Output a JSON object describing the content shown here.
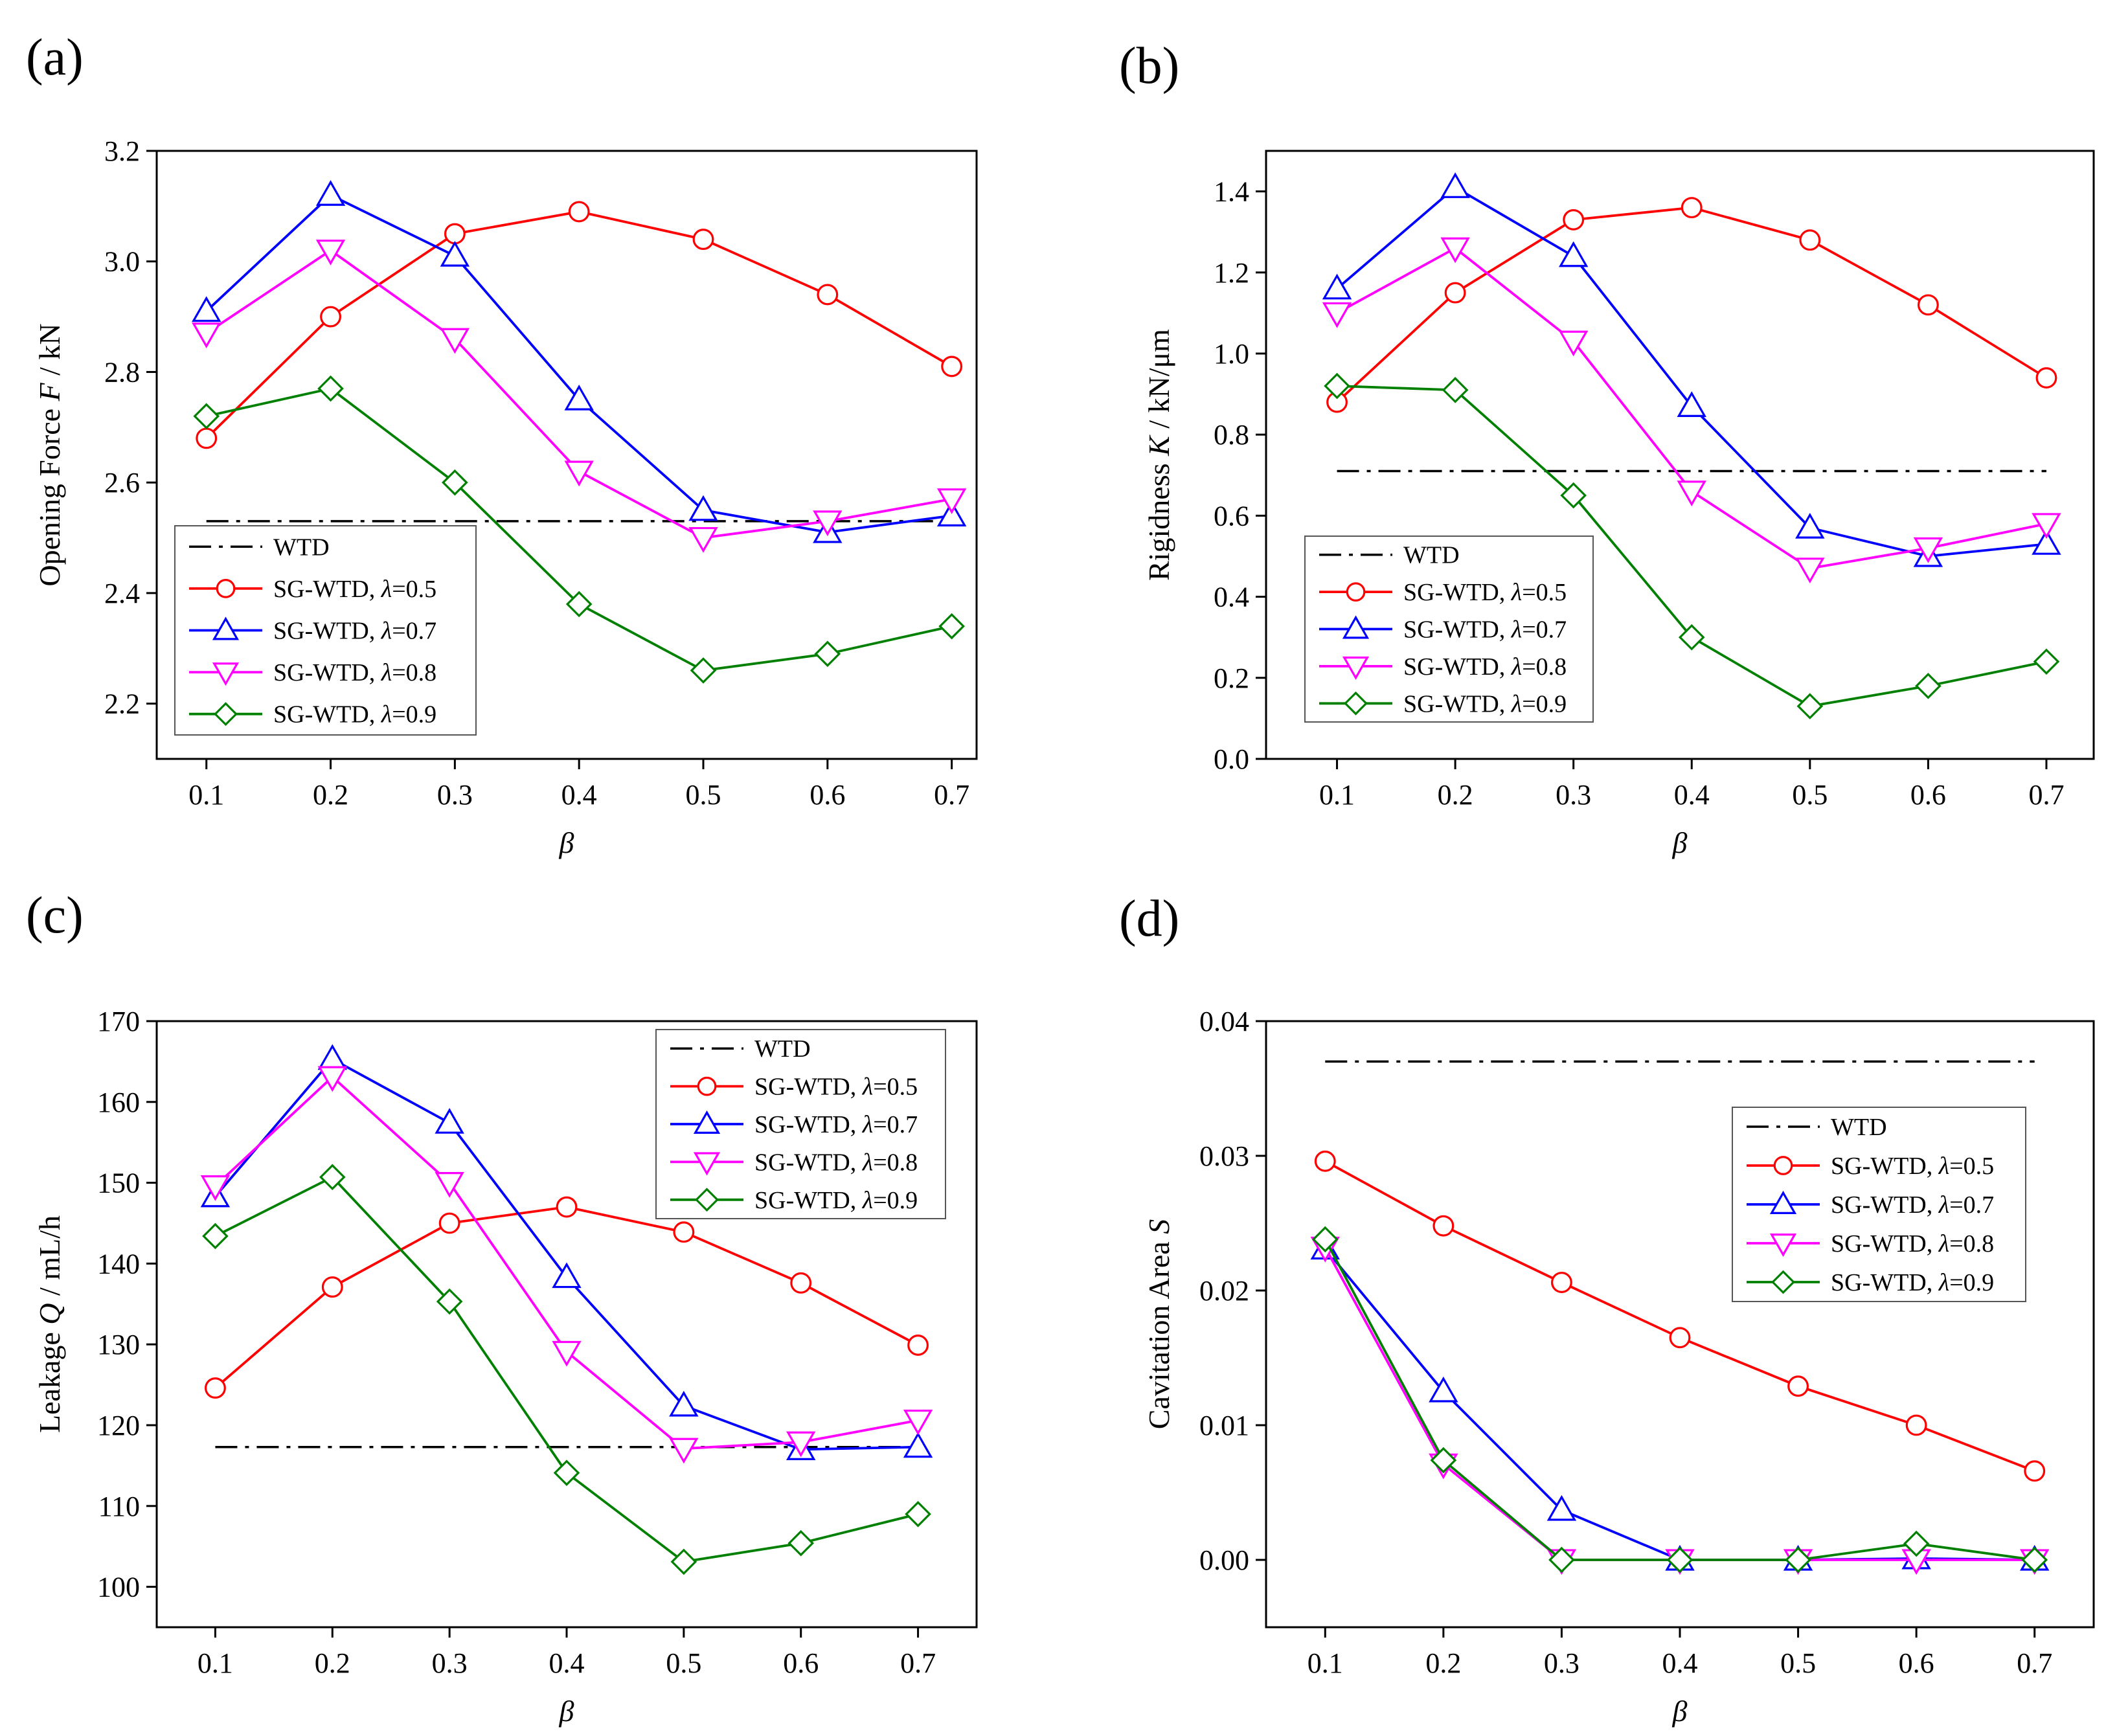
{
  "colors": {
    "wtd": "#000000",
    "lambda_0_5": "#ff0000",
    "lambda_0_7": "#0000ff",
    "lambda_0_8": "#ff00ff",
    "lambda_0_9": "#008000"
  },
  "chart_data": [
    {
      "type": "line",
      "panel_label": "(a)",
      "xlabel": "β",
      "ylabel": "Opening Force F / kN",
      "x": [
        0.1,
        0.2,
        0.3,
        0.4,
        0.5,
        0.6,
        0.7
      ],
      "xticks": [
        "0.1",
        "0.2",
        "0.3",
        "0.4",
        "0.5",
        "0.6",
        "0.7"
      ],
      "xlim": [
        0.06,
        0.72
      ],
      "ylim": [
        2.1,
        3.2
      ],
      "yticks": [
        "2.2",
        "2.4",
        "2.6",
        "2.8",
        "3.0",
        "3.2"
      ],
      "legend_position": "bottom-left",
      "reference": {
        "name": "WTD",
        "value": 2.53
      },
      "series": [
        {
          "name": "SG-WTD, λ=0.5",
          "marker": "circle",
          "values": [
            2.68,
            2.9,
            3.05,
            3.09,
            3.04,
            2.94,
            2.81
          ]
        },
        {
          "name": "SG-WTD, λ=0.7",
          "marker": "triangle-up",
          "values": [
            2.91,
            3.12,
            3.01,
            2.75,
            2.55,
            2.51,
            2.54
          ]
        },
        {
          "name": "SG-WTD, λ=0.8",
          "marker": "triangle-down",
          "values": [
            2.87,
            3.02,
            2.86,
            2.62,
            2.5,
            2.53,
            2.57
          ]
        },
        {
          "name": "SG-WTD, λ=0.9",
          "marker": "diamond",
          "values": [
            2.72,
            2.77,
            2.6,
            2.38,
            2.26,
            2.29,
            2.34
          ]
        }
      ]
    },
    {
      "type": "line",
      "panel_label": "(b)",
      "xlabel": "β",
      "ylabel": "Rigidness K / kN/μm",
      "x": [
        0.1,
        0.2,
        0.3,
        0.4,
        0.5,
        0.6,
        0.7
      ],
      "xticks": [
        "0.1",
        "0.2",
        "0.3",
        "0.4",
        "0.5",
        "0.6",
        "0.7"
      ],
      "xlim": [
        0.04,
        0.74
      ],
      "ylim": [
        0.0,
        1.5
      ],
      "yticks": [
        "0.0",
        "0.2",
        "0.4",
        "0.6",
        "0.8",
        "1.0",
        "1.2",
        "1.4"
      ],
      "legend_position": "bottom-left",
      "reference": {
        "name": "WTD",
        "value": 0.71
      },
      "series": [
        {
          "name": "SG-WTD, λ=0.5",
          "marker": "circle",
          "values": [
            0.88,
            1.15,
            1.33,
            1.36,
            1.28,
            1.12,
            0.94
          ]
        },
        {
          "name": "SG-WTD, λ=0.7",
          "marker": "triangle-up",
          "values": [
            1.16,
            1.41,
            1.24,
            0.87,
            0.57,
            0.5,
            0.53
          ]
        },
        {
          "name": "SG-WTD, λ=0.8",
          "marker": "triangle-down",
          "values": [
            1.1,
            1.26,
            1.03,
            0.66,
            0.47,
            0.52,
            0.58
          ]
        },
        {
          "name": "SG-WTD, λ=0.9",
          "marker": "diamond",
          "values": [
            0.92,
            0.91,
            0.65,
            0.3,
            0.13,
            0.18,
            0.24
          ]
        }
      ]
    },
    {
      "type": "line",
      "panel_label": "(c)",
      "xlabel": "β",
      "ylabel": "Leakage Q / mL/h",
      "x": [
        0.1,
        0.2,
        0.3,
        0.4,
        0.5,
        0.6,
        0.7
      ],
      "xticks": [
        "0.1",
        "0.2",
        "0.3",
        "0.4",
        "0.5",
        "0.6",
        "0.7"
      ],
      "xlim": [
        0.05,
        0.75
      ],
      "ylim": [
        95,
        170
      ],
      "yticks": [
        "100",
        "110",
        "120",
        "130",
        "140",
        "150",
        "160",
        "170"
      ],
      "legend_position": "top-right",
      "reference": {
        "name": "WTD",
        "value": 117.3
      },
      "series": [
        {
          "name": "SG-WTD, λ=0.5",
          "marker": "circle",
          "values": [
            124.6,
            137.1,
            145.0,
            147.0,
            143.9,
            137.6,
            129.9
          ]
        },
        {
          "name": "SG-WTD, λ=0.7",
          "marker": "triangle-up",
          "values": [
            148.3,
            165.3,
            157.4,
            138.3,
            122.4,
            117.0,
            117.3
          ]
        },
        {
          "name": "SG-WTD, λ=0.8",
          "marker": "triangle-down",
          "values": [
            149.6,
            163.1,
            150.0,
            129.1,
            117.1,
            117.9,
            120.6
          ]
        },
        {
          "name": "SG-WTD, λ=0.9",
          "marker": "diamond",
          "values": [
            143.4,
            150.7,
            135.3,
            114.1,
            103.1,
            105.4,
            109.0
          ]
        }
      ]
    },
    {
      "type": "line",
      "panel_label": "(d)",
      "xlabel": "β",
      "ylabel": "Cavitation Area S",
      "x": [
        0.1,
        0.2,
        0.3,
        0.4,
        0.5,
        0.6,
        0.7
      ],
      "xticks": [
        "0.1",
        "0.2",
        "0.3",
        "0.4",
        "0.5",
        "0.6",
        "0.7"
      ],
      "xlim": [
        0.05,
        0.75
      ],
      "ylim": [
        -0.005,
        0.04
      ],
      "yticks": [
        "0.00",
        "0.01",
        "0.02",
        "0.03",
        "0.04"
      ],
      "legend_position": "right",
      "reference": {
        "name": "WTD",
        "value": 0.037
      },
      "series": [
        {
          "name": "SG-WTD, λ=0.5",
          "marker": "circle",
          "values": [
            0.0296,
            0.0248,
            0.0206,
            0.0165,
            0.0129,
            0.01,
            0.0066
          ]
        },
        {
          "name": "SG-WTD, λ=0.7",
          "marker": "triangle-up",
          "values": [
            0.0231,
            0.0125,
            0.0037,
            0.0,
            0.0,
            0.0001,
            0.0
          ]
        },
        {
          "name": "SG-WTD, λ=0.8",
          "marker": "triangle-down",
          "values": [
            0.0232,
            0.0071,
            0.0,
            0.0,
            0.0,
            0.0,
            0.0
          ]
        },
        {
          "name": "SG-WTD, λ=0.9",
          "marker": "diamond",
          "values": [
            0.0238,
            0.0074,
            0.0,
            0.0,
            0.0,
            0.0012,
            0.0
          ]
        }
      ]
    }
  ]
}
